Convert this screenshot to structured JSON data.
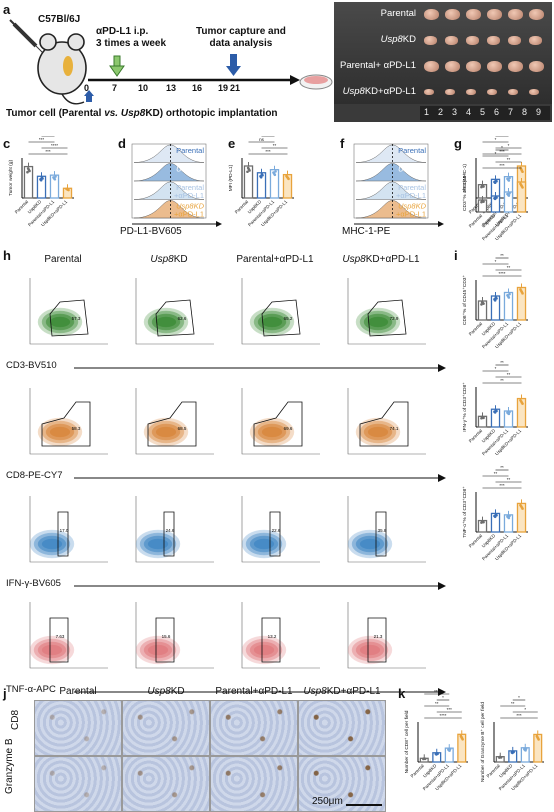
{
  "panels": {
    "a": "a",
    "b": "b",
    "c": "c",
    "d": "d",
    "e": "e",
    "f": "f",
    "g": "g",
    "h": "h",
    "i": "i",
    "j": "j",
    "k": "k"
  },
  "timeline": {
    "mouse": "C57Bl/6J",
    "treatment": "αPD-L1 i.p.\n3 times a week",
    "capture": "Tumor capture and\ndata analysis",
    "days": [
      "0",
      "7",
      "10",
      "13",
      "16",
      "19",
      "21"
    ],
    "implant_pre": "Tumor cell (Parental ",
    "implant_vs": "vs.",
    "implant_mid": " ",
    "implant_usp": "Usp8",
    "implant_post": "KD) orthotopic implantation"
  },
  "tumor_photo": {
    "rows": [
      {
        "pre": "Parental",
        "usp": "",
        "post": ""
      },
      {
        "pre": "",
        "usp": "Usp8",
        "post": "KD"
      },
      {
        "pre": "Parental+ αPD-L1",
        "usp": "",
        "post": ""
      },
      {
        "pre": "",
        "usp": "Usp8",
        "post": "KD+αPD-L1"
      }
    ],
    "ruler": [
      "1",
      "2",
      "3",
      "4",
      "5",
      "6",
      "7",
      "8",
      "9"
    ]
  },
  "groups4": [
    "Parental",
    "Usp8KD",
    "Parental+αPD-L1",
    "Usp8KD+αPD-L1"
  ],
  "panel_c": {
    "ylabel": "Tumor weight (g)",
    "sig": [
      "***",
      "****",
      "***",
      "***"
    ]
  },
  "panel_d": {
    "legend": [
      "Parental",
      "Usp8KD",
      "Parental",
      "+αPD-L1",
      "Usp8KD",
      "+αPD-L1"
    ],
    "xlabel": "PD-L1-BV605"
  },
  "panel_e": {
    "ylabel": "MFI (PD-L1)",
    "sig": [
      "***",
      "**",
      "ns",
      "*"
    ]
  },
  "panel_f": {
    "legend": [
      "Parental",
      "Usp8KD",
      "Parental",
      "+αPD-L1",
      "Usp8KD",
      "+αPD-L1"
    ],
    "xlabel": "MHC-1-PE"
  },
  "panel_g": {
    "ylabel": "MFI (MHC-1)",
    "sig": [
      "***",
      "*",
      "*",
      "**"
    ]
  },
  "flow": {
    "headers": [
      {
        "pre": "Parental",
        "usp": "",
        "post": ""
      },
      {
        "pre": "",
        "usp": "Usp8",
        "post": "KD"
      },
      {
        "pre": "Parental+αPD-L1",
        "usp": "",
        "post": ""
      },
      {
        "pre": "",
        "usp": "Usp8",
        "post": "KD+αPD-L1"
      }
    ],
    "markers": [
      "CD3-BV510",
      "CD8-PE-CY7",
      "IFN-γ-BV605",
      "TNF-α-APC"
    ],
    "gates": [
      [
        "57.3",
        "62.6",
        "65.2",
        "72.9"
      ],
      [
        "58.3",
        "68.5",
        "69.6",
        "74.1"
      ],
      [
        "17.0",
        "24.6",
        "22.6",
        "35.8"
      ],
      [
        "7.63",
        "15.6",
        "13.2",
        "21.3"
      ]
    ],
    "colors": [
      "#3a8a34",
      "#d8853a",
      "#3f86c4",
      "#e07a7e"
    ]
  },
  "panel_i": [
    {
      "ylabel": "CD3⁺% of CD45⁺",
      "sig": [
        "***",
        "**",
        "*",
        "*"
      ]
    },
    {
      "ylabel": "CD8⁺% of CD45⁺CD3⁺",
      "sig": [
        "****",
        "**",
        "*",
        "**"
      ]
    },
    {
      "ylabel": "IFN-γ⁺% of CD3⁺CD8⁺",
      "sig": [
        "**",
        "**",
        "*",
        "**"
      ]
    },
    {
      "ylabel": "TNF-α⁺% of CD3⁺CD8⁺",
      "sig": [
        "***",
        "**",
        "**",
        "**"
      ]
    }
  ],
  "ihc": {
    "headers": [
      {
        "pre": "Parental",
        "usp": "",
        "post": ""
      },
      {
        "pre": "",
        "usp": "Usp8",
        "post": "KD"
      },
      {
        "pre": "Parental+αPD-L1",
        "usp": "",
        "post": ""
      },
      {
        "pre": "",
        "usp": "Usp8",
        "post": "KD+αPD-L1"
      }
    ],
    "rows": [
      "CD8",
      "Granzyme B"
    ],
    "scale": "250μm"
  },
  "panel_k": [
    {
      "ylabel": "Number of CD8⁺ cell per field",
      "sig": [
        "****",
        "***",
        "**",
        "*",
        "***"
      ]
    },
    {
      "ylabel": "Number of Granzyme B⁺ cell per field",
      "sig": [
        "***",
        "*",
        "**",
        "*"
      ]
    }
  ],
  "chart_data": [
    {
      "type": "bar",
      "categories": [
        "Parental",
        "Usp8KD",
        "Parental+αPD-L1",
        "Usp8KD+αPD-L1"
      ],
      "values": [
        0.55,
        0.38,
        0.4,
        0.17
      ],
      "ylabel": "Tumor weight (g)"
    },
    {
      "type": "bar",
      "categories": [
        "Parental",
        "Usp8KD",
        "Parental+αPD-L1",
        "Usp8KD+αPD-L1"
      ],
      "values": [
        520,
        410,
        460,
        380
      ],
      "ylabel": "MFI (PD-L1)"
    },
    {
      "type": "bar",
      "categories": [
        "Parental",
        "Usp8KD",
        "Parental+αPD-L1",
        "Usp8KD+αPD-L1"
      ],
      "values": [
        1.0,
        1.4,
        1.6,
        2.4
      ],
      "ylabel": "MFI (MHC-1)"
    },
    {
      "type": "bar",
      "categories": [
        "Parental",
        "Usp8KD",
        "Parental+αPD-L1",
        "Usp8KD+αPD-L1"
      ],
      "values": [
        18,
        24,
        30,
        45
      ],
      "ylabel": "CD3⁺% of CD45⁺"
    },
    {
      "type": "bar",
      "categories": [
        "Parental",
        "Usp8KD",
        "Parental+αPD-L1",
        "Usp8KD+αPD-L1"
      ],
      "values": [
        38,
        48,
        55,
        65
      ],
      "ylabel": "CD8⁺% of CD45⁺CD3⁺"
    },
    {
      "type": "bar",
      "categories": [
        "Parental",
        "Usp8KD",
        "Parental+αPD-L1",
        "Usp8KD+αPD-L1"
      ],
      "values": [
        12,
        20,
        18,
        32
      ],
      "ylabel": "IFN-γ⁺% of CD3⁺CD8⁺"
    },
    {
      "type": "bar",
      "categories": [
        "Parental",
        "Usp8KD",
        "Parental+αPD-L1",
        "Usp8KD+αPD-L1"
      ],
      "values": [
        8,
        13,
        12,
        20
      ],
      "ylabel": "TNF-α⁺% of CD3⁺CD8⁺"
    },
    {
      "type": "bar",
      "categories": [
        "Parental",
        "Usp8KD",
        "Parental+αPD-L1",
        "Usp8KD+αPD-L1"
      ],
      "values": [
        12,
        30,
        45,
        90
      ],
      "ylabel": "Number of CD8⁺ cell per field"
    },
    {
      "type": "bar",
      "categories": [
        "Parental",
        "Usp8KD",
        "Parental+αPD-L1",
        "Usp8KD+αPD-L1"
      ],
      "values": [
        12,
        25,
        32,
        62
      ],
      "ylabel": "Number of Granzyme B⁺ cell per field"
    }
  ]
}
